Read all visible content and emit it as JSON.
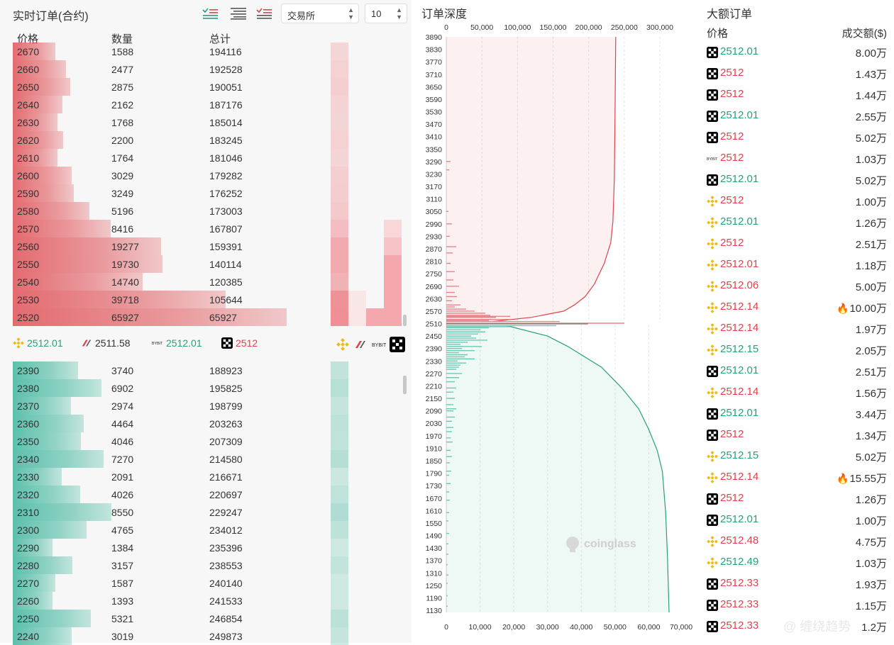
{
  "orderbook": {
    "title": "实时订单(合约)",
    "exchange_select": "交易所",
    "depth_select": "10",
    "headers": {
      "price": "价格",
      "qty": "数量",
      "total": "总计"
    },
    "asks": [
      {
        "price": "2670",
        "qty": "1588",
        "total": "194116"
      },
      {
        "price": "2660",
        "qty": "2477",
        "total": "192528"
      },
      {
        "price": "2650",
        "qty": "2875",
        "total": "190051"
      },
      {
        "price": "2640",
        "qty": "2162",
        "total": "187176"
      },
      {
        "price": "2630",
        "qty": "1768",
        "total": "185014"
      },
      {
        "price": "2620",
        "qty": "2200",
        "total": "183245"
      },
      {
        "price": "2610",
        "qty": "1764",
        "total": "181046"
      },
      {
        "price": "2600",
        "qty": "3029",
        "total": "179282"
      },
      {
        "price": "2590",
        "qty": "3249",
        "total": "176252"
      },
      {
        "price": "2580",
        "qty": "5196",
        "total": "173003"
      },
      {
        "price": "2570",
        "qty": "8416",
        "total": "167807"
      },
      {
        "price": "2560",
        "qty": "19277",
        "total": "159391"
      },
      {
        "price": "2550",
        "qty": "19730",
        "total": "140114"
      },
      {
        "price": "2540",
        "qty": "14740",
        "total": "120385"
      },
      {
        "price": "2530",
        "qty": "39718",
        "total": "105644"
      },
      {
        "price": "2520",
        "qty": "65927",
        "total": "65927"
      }
    ],
    "mid_prices": [
      {
        "exchange": "binance-icon",
        "price": "2512.01",
        "color": "#26a17b"
      },
      {
        "exchange": "okx-hl-icon",
        "price": "2511.58",
        "color": "#333333"
      },
      {
        "exchange": "bybit-icon",
        "price": "2512.01",
        "color": "#26a17b"
      },
      {
        "exchange": "okx-icon",
        "price": "2512",
        "color": "#e0424c"
      }
    ],
    "bids": [
      {
        "price": "2390",
        "qty": "3740",
        "total": "188923"
      },
      {
        "price": "2380",
        "qty": "6902",
        "total": "195825"
      },
      {
        "price": "2370",
        "qty": "2974",
        "total": "198799"
      },
      {
        "price": "2360",
        "qty": "4464",
        "total": "203263"
      },
      {
        "price": "2350",
        "qty": "4046",
        "total": "207309"
      },
      {
        "price": "2340",
        "qty": "7270",
        "total": "214580"
      },
      {
        "price": "2330",
        "qty": "2091",
        "total": "216671"
      },
      {
        "price": "2320",
        "qty": "4026",
        "total": "220697"
      },
      {
        "price": "2310",
        "qty": "8550",
        "total": "229247"
      },
      {
        "price": "2300",
        "qty": "4765",
        "total": "234012"
      },
      {
        "price": "2290",
        "qty": "1384",
        "total": "235396"
      },
      {
        "price": "2280",
        "qty": "3157",
        "total": "238553"
      },
      {
        "price": "2270",
        "qty": "1587",
        "total": "240140"
      },
      {
        "price": "2260",
        "qty": "1393",
        "total": "241533"
      },
      {
        "price": "2250",
        "qty": "5321",
        "total": "246854"
      },
      {
        "price": "2240",
        "qty": "3019",
        "total": "249873"
      }
    ],
    "colors": {
      "ask": "#e36b70",
      "bid": "#5cc0ab",
      "up": "#26a17b",
      "down": "#e0424c"
    }
  },
  "depth": {
    "title": "订单深度",
    "chart_data": {
      "type": "area",
      "top_axis_ticks": [
        "0",
        "50,000",
        "100,000",
        "150,000",
        "200,000",
        "250,000",
        "300,000"
      ],
      "bottom_axis_ticks": [
        "0",
        "10,000",
        "20,000",
        "30,000",
        "40,000",
        "50,000",
        "60,000",
        "70,000"
      ],
      "price_ticks": [
        "3890",
        "3830",
        "3770",
        "3710",
        "3650",
        "3590",
        "3530",
        "3470",
        "3410",
        "3350",
        "3290",
        "3230",
        "3170",
        "3110",
        "3050",
        "2990",
        "2930",
        "2870",
        "2810",
        "2750",
        "2690",
        "2630",
        "2570",
        "2510",
        "2450",
        "2390",
        "2330",
        "2270",
        "2210",
        "2150",
        "2090",
        "2030",
        "1970",
        "1910",
        "1850",
        "1790",
        "1730",
        "1670",
        "1610",
        "1550",
        "1490",
        "1430",
        "1370",
        "1310",
        "1250",
        "1190",
        "1130"
      ],
      "ask_cumulative": [
        {
          "price": 3890,
          "total": 238000
        },
        {
          "price": 3500,
          "total": 237000
        },
        {
          "price": 3200,
          "total": 236000
        },
        {
          "price": 3000,
          "total": 234000
        },
        {
          "price": 2900,
          "total": 231000
        },
        {
          "price": 2800,
          "total": 222000
        },
        {
          "price": 2700,
          "total": 208000
        },
        {
          "price": 2640,
          "total": 195000
        },
        {
          "price": 2600,
          "total": 180000
        },
        {
          "price": 2570,
          "total": 165000
        },
        {
          "price": 2540,
          "total": 120000
        },
        {
          "price": 2520,
          "total": 65000
        }
      ],
      "bid_cumulative": [
        {
          "price": 2500,
          "total": 18000
        },
        {
          "price": 2450,
          "total": 30000
        },
        {
          "price": 2400,
          "total": 36000
        },
        {
          "price": 2300,
          "total": 46000
        },
        {
          "price": 2200,
          "total": 52000
        },
        {
          "price": 2100,
          "total": 57000
        },
        {
          "price": 2000,
          "total": 60000
        },
        {
          "price": 1900,
          "total": 62500
        },
        {
          "price": 1800,
          "total": 64000
        },
        {
          "price": 1600,
          "total": 65000
        },
        {
          "price": 1400,
          "total": 65500
        },
        {
          "price": 1120,
          "total": 66000
        }
      ],
      "watermark": "coinglass",
      "colors": {
        "ask": "#e0424c",
        "bid": "#26a17b"
      }
    }
  },
  "big_orders": {
    "title": "大额订单",
    "headers": {
      "price": "价格",
      "amount": "成交额($)"
    },
    "rows": [
      {
        "ex": "okx-icon",
        "price": "2512.01",
        "up": true,
        "amount": "8.00万",
        "fire": false
      },
      {
        "ex": "okx-icon",
        "price": "2512",
        "up": false,
        "amount": "1.43万",
        "fire": false
      },
      {
        "ex": "okx-icon",
        "price": "2512",
        "up": false,
        "amount": "1.44万",
        "fire": false
      },
      {
        "ex": "okx-icon",
        "price": "2512.01",
        "up": true,
        "amount": "2.55万",
        "fire": false
      },
      {
        "ex": "okx-icon",
        "price": "2512",
        "up": false,
        "amount": "5.02万",
        "fire": false
      },
      {
        "ex": "bybit-icon",
        "price": "2512",
        "up": false,
        "amount": "1.03万",
        "fire": false
      },
      {
        "ex": "okx-icon",
        "price": "2512.01",
        "up": true,
        "amount": "5.02万",
        "fire": false
      },
      {
        "ex": "binance-icon",
        "price": "2512",
        "up": false,
        "amount": "1.00万",
        "fire": false
      },
      {
        "ex": "binance-icon",
        "price": "2512.01",
        "up": true,
        "amount": "1.26万",
        "fire": false
      },
      {
        "ex": "binance-icon",
        "price": "2512",
        "up": false,
        "amount": "2.51万",
        "fire": false
      },
      {
        "ex": "binance-icon",
        "price": "2512.01",
        "up": false,
        "amount": "1.18万",
        "fire": false
      },
      {
        "ex": "binance-icon",
        "price": "2512.06",
        "up": false,
        "amount": "5.00万",
        "fire": false
      },
      {
        "ex": "binance-icon",
        "price": "2512.14",
        "up": false,
        "amount": "10.00万",
        "fire": true
      },
      {
        "ex": "binance-icon",
        "price": "2512.14",
        "up": false,
        "amount": "1.97万",
        "fire": false
      },
      {
        "ex": "binance-icon",
        "price": "2512.15",
        "up": true,
        "amount": "2.05万",
        "fire": false
      },
      {
        "ex": "okx-icon",
        "price": "2512.01",
        "up": true,
        "amount": "2.51万",
        "fire": false
      },
      {
        "ex": "binance-icon",
        "price": "2512.14",
        "up": false,
        "amount": "1.56万",
        "fire": false
      },
      {
        "ex": "okx-icon",
        "price": "2512.01",
        "up": true,
        "amount": "3.44万",
        "fire": false
      },
      {
        "ex": "okx-icon",
        "price": "2512",
        "up": false,
        "amount": "1.34万",
        "fire": false
      },
      {
        "ex": "binance-icon",
        "price": "2512.15",
        "up": true,
        "amount": "5.02万",
        "fire": false
      },
      {
        "ex": "binance-icon",
        "price": "2512.14",
        "up": false,
        "amount": "15.55万",
        "fire": true
      },
      {
        "ex": "okx-icon",
        "price": "2512",
        "up": false,
        "amount": "1.26万",
        "fire": false
      },
      {
        "ex": "okx-icon",
        "price": "2512.01",
        "up": true,
        "amount": "1.00万",
        "fire": false
      },
      {
        "ex": "binance-icon",
        "price": "2512.48",
        "up": false,
        "amount": "4.75万",
        "fire": false
      },
      {
        "ex": "binance-icon",
        "price": "2512.49",
        "up": true,
        "amount": "1.03万",
        "fire": false
      },
      {
        "ex": "okx-icon",
        "price": "2512.33",
        "up": false,
        "amount": "1.93万",
        "fire": false
      },
      {
        "ex": "okx-icon",
        "price": "2512.33",
        "up": false,
        "amount": "1.15万",
        "fire": false
      },
      {
        "ex": "okx-icon",
        "price": "2512.33",
        "up": false,
        "amount": "1.2万",
        "fire": false
      }
    ],
    "watermark": "@ 缠绕趋势"
  }
}
